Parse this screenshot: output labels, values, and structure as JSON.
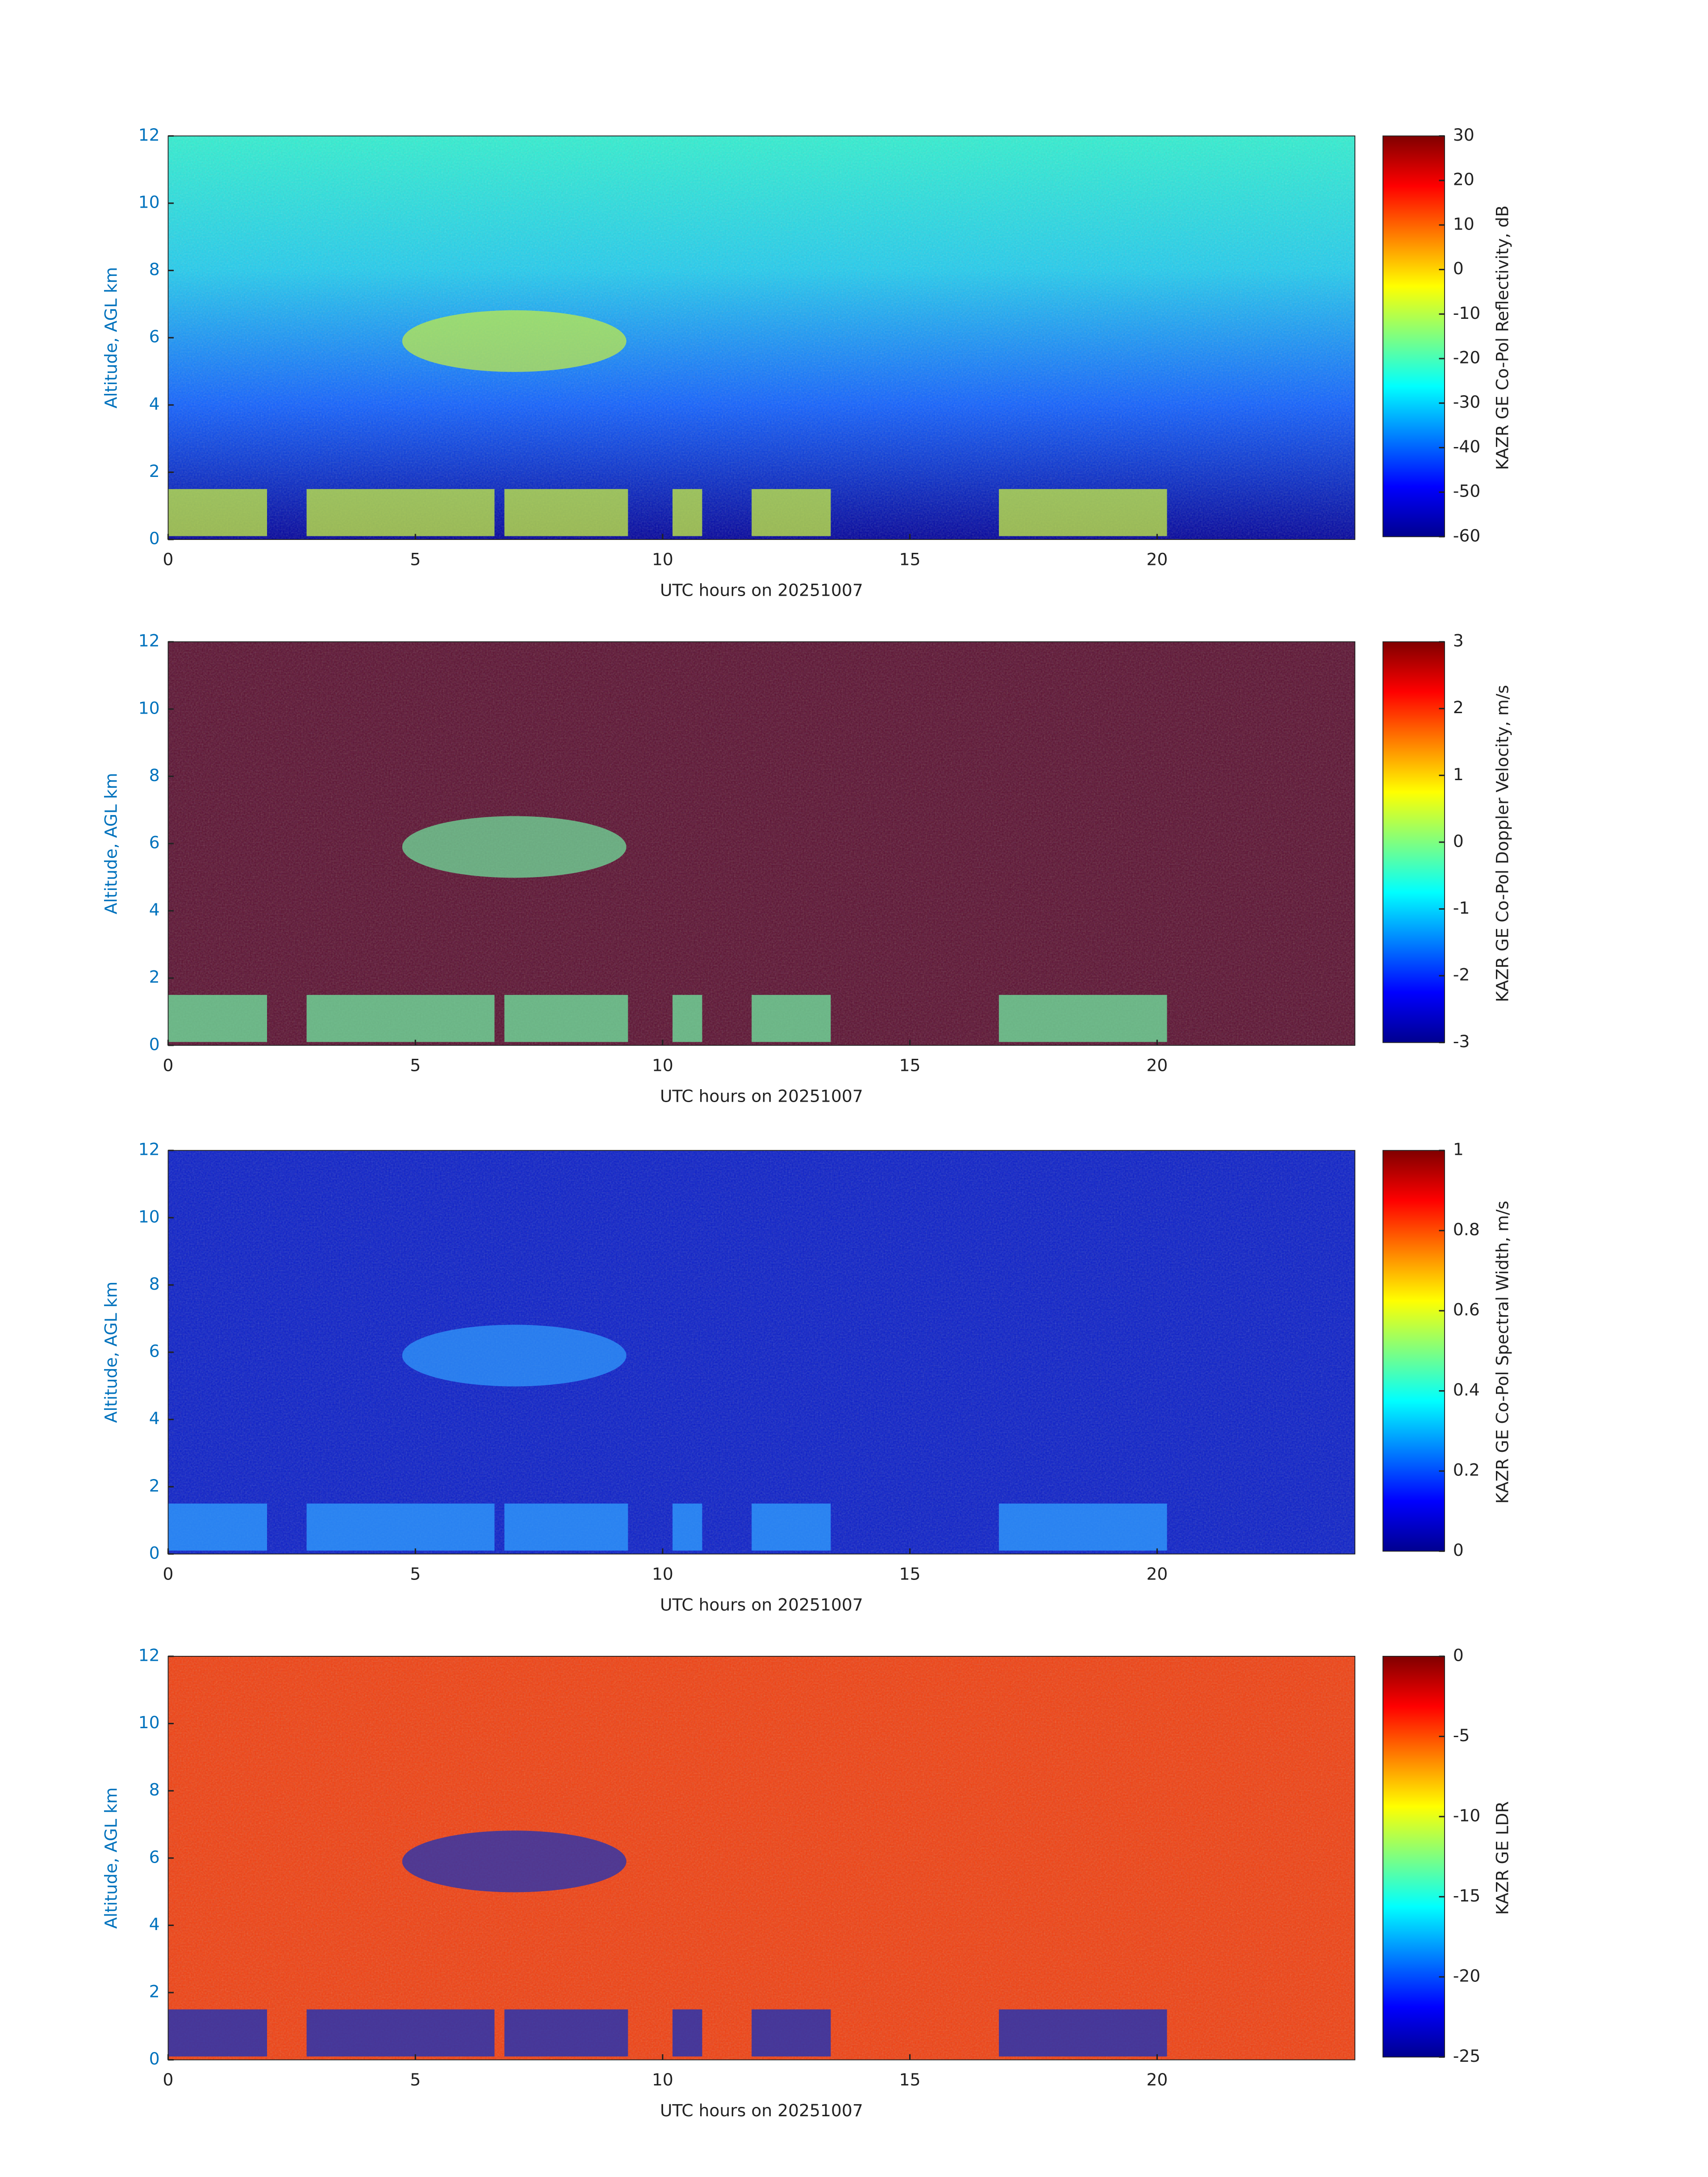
{
  "chart_data": [
    {
      "type": "heatmap",
      "xlabel": "UTC hours on 20251007",
      "ylabel": "Altitude, AGL km",
      "xlim": [
        0,
        24
      ],
      "ylim": [
        0,
        12
      ],
      "xticks": [
        0,
        5,
        10,
        15,
        20
      ],
      "yticks": [
        0,
        2,
        4,
        6,
        8,
        10,
        12
      ],
      "field_colors": [
        "#00009a",
        "#1060ff",
        "#22ccee",
        "#30f0d0"
      ],
      "cloud_color": "#c8f040",
      "colorbar": {
        "label": "KAZR GE Co-Pol Reflectivity, dB",
        "lim": [
          -60,
          30
        ],
        "ticks": [
          -60,
          -50,
          -40,
          -30,
          -20,
          -10,
          0,
          10,
          20,
          30
        ],
        "colormap": "jet"
      }
    },
    {
      "type": "heatmap",
      "xlabel": "UTC hours on 20251007",
      "ylabel": "Altitude, AGL km",
      "xlim": [
        0,
        24
      ],
      "ylim": [
        0,
        12
      ],
      "xticks": [
        0,
        5,
        10,
        15,
        20
      ],
      "yticks": [
        0,
        2,
        4,
        6,
        8,
        10,
        12
      ],
      "field_colors": [
        "#5a1030",
        "#5a1030",
        "#5a1030",
        "#5a1030"
      ],
      "cloud_color": "#70e8a0",
      "colorbar": {
        "label": "KAZR GE Co-Pol Doppler Velocity, m/s",
        "lim": [
          -3,
          3
        ],
        "ticks": [
          -3,
          -2,
          -1,
          0,
          1,
          2,
          3
        ],
        "colormap": "jet"
      }
    },
    {
      "type": "heatmap",
      "xlabel": "UTC hours on 20251007",
      "ylabel": "Altitude, AGL km",
      "xlim": [
        0,
        24
      ],
      "ylim": [
        0,
        12
      ],
      "xticks": [
        0,
        5,
        10,
        15,
        20
      ],
      "yticks": [
        0,
        2,
        4,
        6,
        8,
        10,
        12
      ],
      "field_colors": [
        "#0a1ec8",
        "#0a1ec8",
        "#0a1ec8",
        "#0a1ec8"
      ],
      "cloud_color": "#30a0ff",
      "colorbar": {
        "label": "KAZR GE Co-Pol Spectral Width, m/s",
        "lim": [
          0,
          1
        ],
        "ticks": [
          0,
          0.2,
          0.4,
          0.6,
          0.8,
          1
        ],
        "colormap": "jet"
      }
    },
    {
      "type": "heatmap",
      "xlabel": "UTC hours on 20251007",
      "ylabel": "Altitude, AGL km",
      "xlim": [
        0,
        24
      ],
      "ylim": [
        0,
        12
      ],
      "xticks": [
        0,
        5,
        10,
        15,
        20
      ],
      "yticks": [
        0,
        2,
        4,
        6,
        8,
        10,
        12
      ],
      "field_colors": [
        "#f04010",
        "#f04010",
        "#f04010",
        "#f04010"
      ],
      "cloud_color": "#1030c0",
      "colorbar": {
        "label": "KAZR GE LDR",
        "lim": [
          -25,
          0
        ],
        "ticks": [
          -25,
          -20,
          -15,
          -10,
          -5,
          0
        ],
        "colormap": "jet"
      }
    }
  ]
}
